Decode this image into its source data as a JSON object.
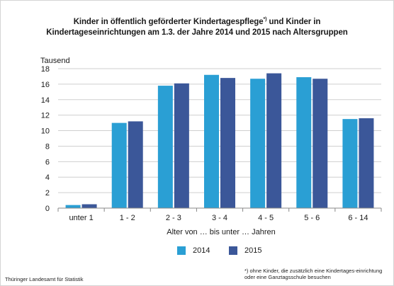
{
  "title_line1": "Kinder in öffentlich geförderter Kindertagespflege",
  "title_sup": "*)",
  "title_line1_end": " und Kinder in",
  "title_line2": "Kindertageseinrichtungen am 1.3. der Jahre 2014 und 2015 nach Altersgruppen",
  "footnote": "*) ohne Kinder, die zusätzlich eine Kindertages-einrichtung oder eine Ganztagsschule besuchen",
  "source": "Thüringer Landesamt  für Statistik",
  "colors": {
    "2014": "#2a9fd4",
    "2015": "#3b5799",
    "grid": "#cfcfcf",
    "axis": "#888888"
  },
  "chart_data": {
    "type": "bar",
    "title": "Kinder in öffentlich geförderter Kindertagespflege*) und Kinder in Kindertageseinrichtungen am 1.3. der Jahre 2014 und 2015 nach Altersgruppen",
    "ylabel": "Tausend",
    "xlabel": "Alter von … bis unter … Jahren",
    "categories": [
      "unter 1",
      "1 - 2",
      "2 - 3",
      "3 - 4",
      "4 - 5",
      "5 - 6",
      "6 - 14"
    ],
    "series": [
      {
        "name": "2014",
        "values": [
          0.4,
          11.0,
          15.8,
          17.2,
          16.7,
          16.9,
          11.5
        ]
      },
      {
        "name": "2015",
        "values": [
          0.5,
          11.2,
          16.1,
          16.8,
          17.4,
          16.7,
          11.6
        ]
      }
    ],
    "ylim": [
      0,
      18
    ],
    "yticks": [
      0,
      2,
      4,
      6,
      8,
      10,
      12,
      14,
      16,
      18
    ],
    "grid": true,
    "legend": "bottom"
  }
}
